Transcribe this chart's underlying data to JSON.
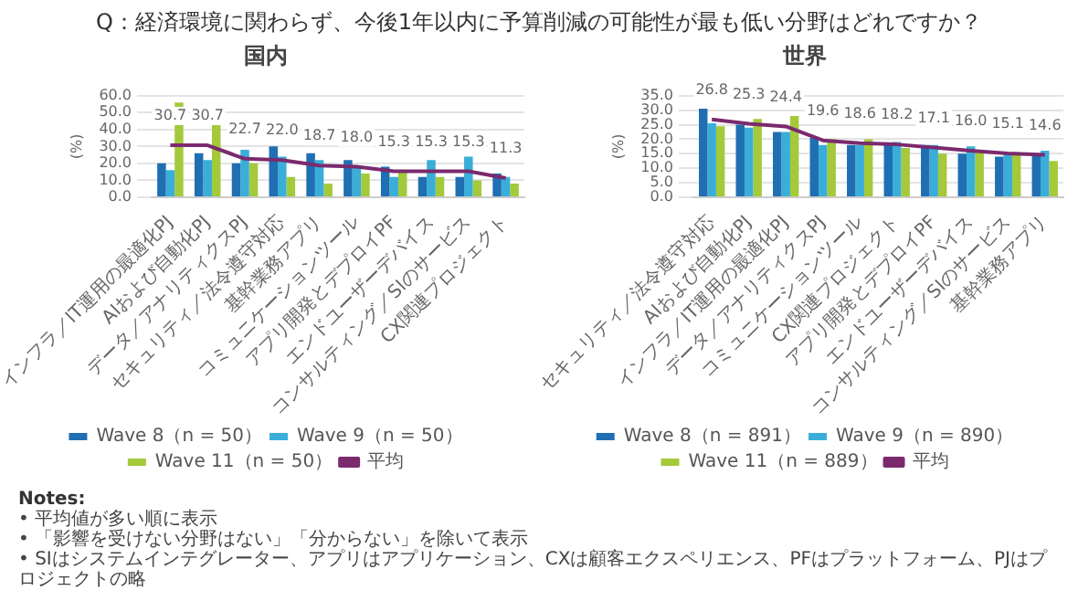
{
  "chart_data": [
    {
      "type": "other",
      "title": "Q：経済環境に関わらず、今後1年以内に予算削減の可能性が最も低い分野はどれですか？"
    },
    {
      "type": "bar",
      "title": "国内",
      "ylabel": "(%)",
      "categories": [
        "インフラ／IT運用の最適化PJ",
        "AIおよび自動化PJ",
        "データ／アナリティクスPJ",
        "セキュリティ／法令遵守対応",
        "基幹業務アプリ",
        "コミュニケーションツール",
        "アプリ開発とデプロイPF",
        "エンドユーザーデバイス",
        "コンサルティング／SIのサービス",
        "CX関連プロジェクト"
      ],
      "series": [
        {
          "name": "Wave 8（n = 50）",
          "color": "#1f6fb2",
          "values": [
            20,
            26,
            20,
            30,
            26,
            22,
            18,
            12,
            12,
            14
          ]
        },
        {
          "name": "Wave 9（n = 50）",
          "color": "#3aaed8",
          "values": [
            16,
            22,
            28,
            24,
            22,
            18,
            12,
            22,
            24,
            12
          ]
        },
        {
          "name": "Wave 11（n = 50）",
          "color": "#a4c93a",
          "values": [
            56,
            44,
            20,
            12,
            8,
            14,
            16,
            12,
            10,
            8
          ]
        },
        {
          "name": "平均",
          "type": "line",
          "color": "#7b2a6e",
          "values": [
            30.7,
            30.7,
            22.7,
            22.0,
            18.7,
            18.0,
            15.3,
            15.3,
            15.3,
            11.3
          ],
          "value_labels": [
            "30.7",
            "30.7",
            "22.7",
            "22.0",
            "18.7",
            "18.0",
            "15.3",
            "15.3",
            "15.3",
            "11.3"
          ]
        }
      ],
      "ylim": [
        0,
        60
      ],
      "yticks": [
        {
          "value": 0,
          "label": "0.0"
        },
        {
          "value": 10,
          "label": "10.0"
        },
        {
          "value": 20,
          "label": "20.0"
        },
        {
          "value": 30,
          "label": "30.0"
        },
        {
          "value": 40,
          "label": "40.0"
        },
        {
          "value": 50,
          "label": "50.0"
        },
        {
          "value": 60,
          "label": "60.0"
        }
      ],
      "grid": "y",
      "legend": "bottom"
    },
    {
      "type": "bar",
      "title": "世界",
      "ylabel": "(%)",
      "categories": [
        "セキュリティ／法令遵守対応",
        "AIおよび自動化PJ",
        "インフラ／IT運用の最適化PJ",
        "データ／アナリティクスPJ",
        "コミュニケーションツール",
        "CX関連プロジェクト",
        "アプリ開発とデプロイPF",
        "エンドユーザーデバイス",
        "コンサルティング／SIのサービス",
        "基幹業務アプリ"
      ],
      "series": [
        {
          "name": "Wave 8（n = 891）",
          "color": "#1f6fb2",
          "values": [
            30.5,
            25,
            22.5,
            20.5,
            18,
            18.5,
            18,
            15,
            14,
            15
          ]
        },
        {
          "name": "Wave 9（n = 890）",
          "color": "#3aaed8",
          "values": [
            25.5,
            24,
            22.5,
            18,
            18,
            19,
            18,
            17.5,
            15.5,
            16
          ]
        },
        {
          "name": "Wave 11（n = 889）",
          "color": "#a4c93a",
          "values": [
            24.5,
            27,
            28,
            20,
            20,
            17,
            15,
            15.5,
            15.5,
            12.5
          ]
        },
        {
          "name": "平均",
          "type": "line",
          "color": "#7b2a6e",
          "values": [
            26.8,
            25.3,
            24.4,
            19.6,
            18.6,
            18.2,
            17.1,
            16.0,
            15.1,
            14.6
          ],
          "value_labels": [
            "26.8",
            "25.3",
            "24.4",
            "19.6",
            "18.6",
            "18.2",
            "17.1",
            "16.0",
            "15.1",
            "14.6"
          ]
        }
      ],
      "ylim": [
        0,
        35
      ],
      "yticks": [
        {
          "value": 0,
          "label": "0.0"
        },
        {
          "value": 5,
          "label": "5.0"
        },
        {
          "value": 10,
          "label": "10.0"
        },
        {
          "value": 15,
          "label": "15.0"
        },
        {
          "value": 20,
          "label": "20.0"
        },
        {
          "value": 25,
          "label": "25.0"
        },
        {
          "value": 30,
          "label": "30.0"
        },
        {
          "value": 35,
          "label": "35.0"
        }
      ],
      "grid": "y",
      "legend": "bottom"
    },
    {
      "type": "other",
      "title": "Notes:",
      "annotations": [
        "• 平均値が多い順に表示",
        "• 「影響を受けない分野はない」「分からない」を除いて表示",
        "• SIはシステムインテグレーター、アプリはアプリケーション、CXは顧客エクスペリエンス、PFはプラットフォーム、PJはプロジェクトの略"
      ]
    }
  ]
}
